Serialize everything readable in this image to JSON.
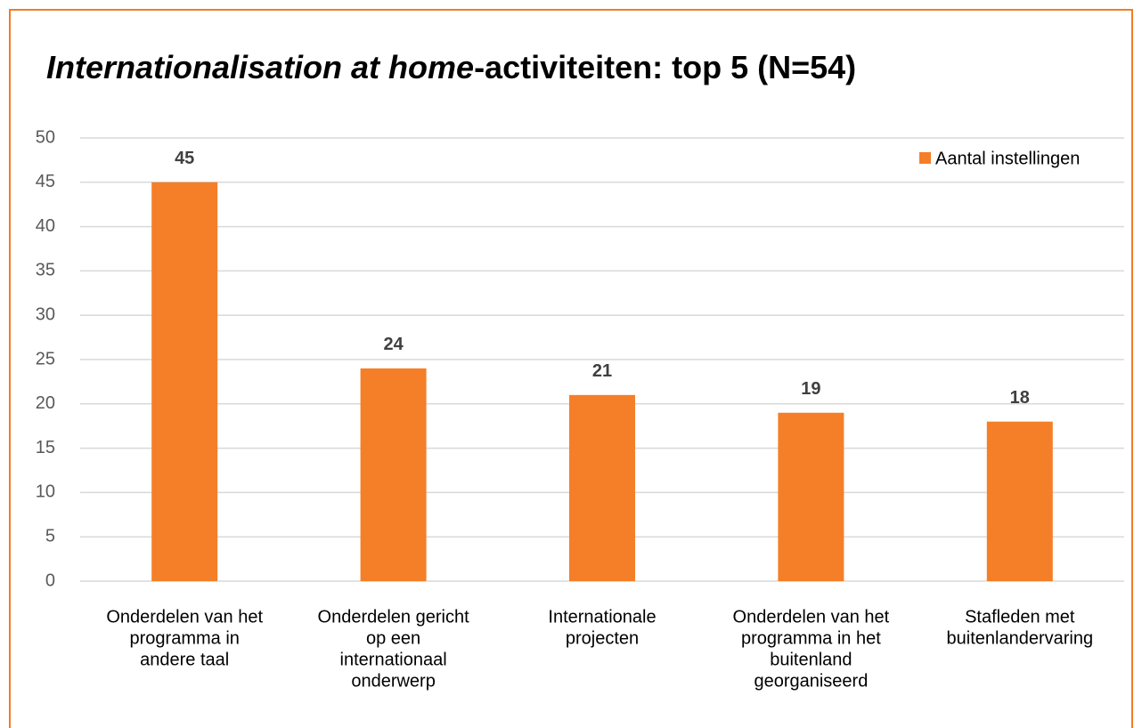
{
  "chart_data": {
    "type": "bar",
    "title": [
      "Internationalisation at home",
      "-activiteiten: top 5 (N=54)"
    ],
    "categories": [
      [
        "Onderdelen van het",
        "programma in",
        "andere taal"
      ],
      [
        "Onderdelen gericht",
        "op een",
        "internationaal",
        "onderwerp"
      ],
      [
        "Internationale",
        "projecten"
      ],
      [
        "Onderdelen van het",
        "programma in het",
        "buitenland",
        "georganiseerd"
      ],
      [
        "Stafleden met",
        "buitenlandervaring"
      ]
    ],
    "series": [
      {
        "name": "Aantal instellingen",
        "color": "#f47f28",
        "values": [
          45,
          24,
          21,
          19,
          18
        ]
      }
    ],
    "ylim": [
      0,
      50
    ],
    "yticks": [
      0,
      5,
      10,
      15,
      20,
      25,
      30,
      35,
      40,
      45,
      50
    ],
    "grid": true,
    "legend": "top-right",
    "data_labels": true
  }
}
